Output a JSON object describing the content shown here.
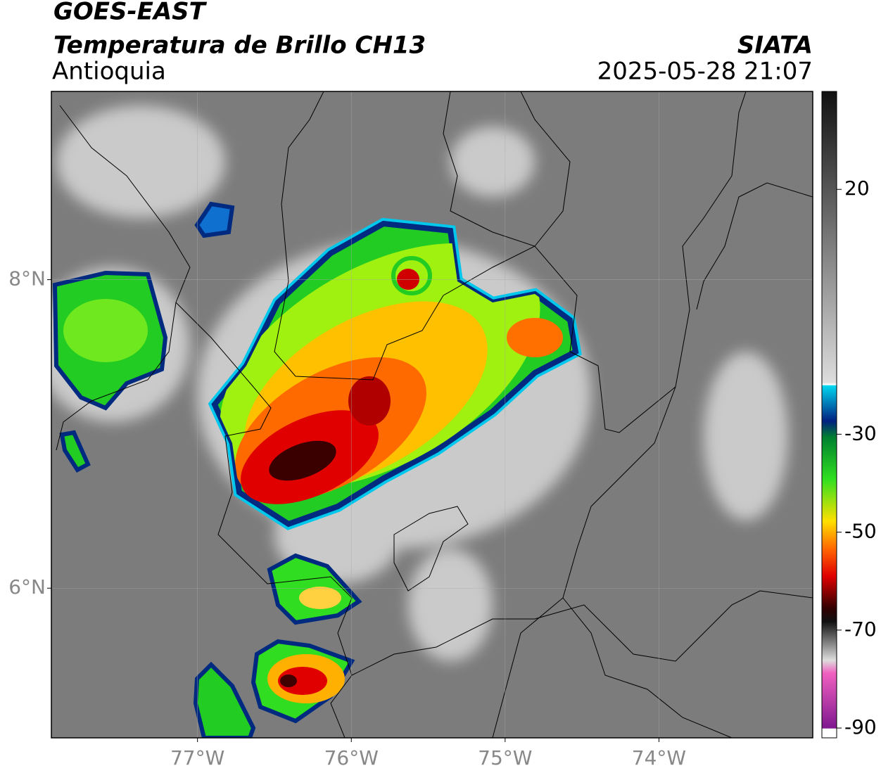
{
  "map": {
    "title": "GOES-EAST",
    "subtitle": "Temperatura de Brillo CH13",
    "region": "Antioquia",
    "source": "SIATA",
    "datetime": "2025-05-28 21:07",
    "xlim": [
      -77.95,
      -73
    ],
    "ylim": [
      5.03,
      9.22
    ],
    "xticks": [
      {
        "value": -77,
        "label": "77°W"
      },
      {
        "value": -76,
        "label": "76°W"
      },
      {
        "value": -75,
        "label": "75°W"
      },
      {
        "value": -74,
        "label": "74°W"
      }
    ],
    "yticks": [
      {
        "value": 6,
        "label": "6°N"
      },
      {
        "value": 8,
        "label": "8°N"
      }
    ],
    "grid": true,
    "colorbar": {
      "lim": [
        -92,
        40
      ],
      "ticks": [
        20,
        -30,
        -50,
        -70,
        -90
      ]
    }
  }
}
